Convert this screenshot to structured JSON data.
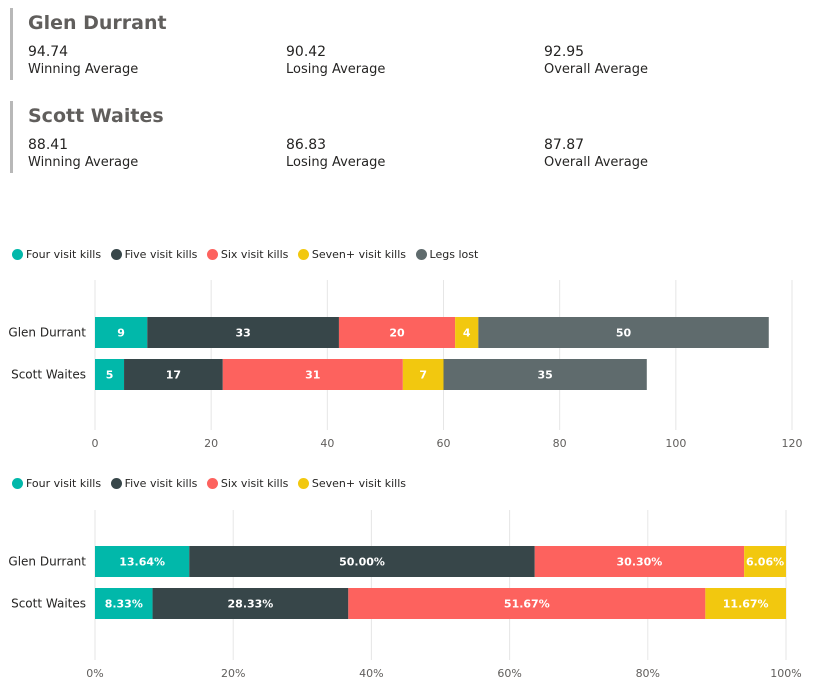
{
  "players": [
    {
      "name": "Glen Durrant",
      "kpis": [
        {
          "value": "94.74",
          "label": "Winning Average"
        },
        {
          "value": "90.42",
          "label": "Losing Average"
        },
        {
          "value": "92.95",
          "label": "Overall Average"
        }
      ]
    },
    {
      "name": "Scott Waites",
      "kpis": [
        {
          "value": "88.41",
          "label": "Winning Average"
        },
        {
          "value": "86.83",
          "label": "Losing Average"
        },
        {
          "value": "87.87",
          "label": "Overall Average"
        }
      ]
    }
  ],
  "colors": {
    "four": "#01b8aa",
    "five": "#374649",
    "six": "#fd625e",
    "seven": "#f2c80f",
    "lost": "#5f6b6d",
    "grid": "#e6e6e6",
    "axis_text": "#605e5c"
  },
  "chart_data": [
    {
      "type": "bar",
      "orientation": "horizontal",
      "stacked": true,
      "categories": [
        "Glen Durrant",
        "Scott Waites"
      ],
      "series": [
        {
          "name": "Four visit kills",
          "color_key": "four",
          "values": [
            9,
            5
          ],
          "labels": [
            "9",
            "5"
          ]
        },
        {
          "name": "Five visit kills",
          "color_key": "five",
          "values": [
            33,
            17
          ],
          "labels": [
            "33",
            "17"
          ]
        },
        {
          "name": "Six visit kills",
          "color_key": "six",
          "values": [
            20,
            31
          ],
          "labels": [
            "20",
            "31"
          ]
        },
        {
          "name": "Seven+ visit kills",
          "color_key": "seven",
          "values": [
            4,
            7
          ],
          "labels": [
            "4",
            "7"
          ]
        },
        {
          "name": "Legs lost",
          "color_key": "lost",
          "values": [
            50,
            35
          ],
          "labels": [
            "50",
            "35"
          ]
        }
      ],
      "xlim": [
        0,
        120
      ],
      "ticks": [
        0,
        20,
        40,
        60,
        80,
        100,
        120
      ],
      "tick_labels": [
        "0",
        "20",
        "40",
        "60",
        "80",
        "100",
        "120"
      ],
      "grid": true,
      "legend_position": "top-left"
    },
    {
      "type": "bar",
      "orientation": "horizontal",
      "stacked": true,
      "percent": true,
      "categories": [
        "Glen Durrant",
        "Scott Waites"
      ],
      "series": [
        {
          "name": "Four visit kills",
          "color_key": "four",
          "values": [
            13.64,
            8.33
          ],
          "labels": [
            "13.64%",
            "8.33%"
          ]
        },
        {
          "name": "Five visit kills",
          "color_key": "five",
          "values": [
            50.0,
            28.33
          ],
          "labels": [
            "50.00%",
            "28.33%"
          ]
        },
        {
          "name": "Six visit kills",
          "color_key": "six",
          "values": [
            30.3,
            51.67
          ],
          "labels": [
            "30.30%",
            "51.67%"
          ]
        },
        {
          "name": "Seven+ visit kills",
          "color_key": "seven",
          "values": [
            6.06,
            11.67
          ],
          "labels": [
            "6.06%",
            "11.67%"
          ]
        }
      ],
      "xlim": [
        0,
        100
      ],
      "ticks": [
        0,
        20,
        40,
        60,
        80,
        100
      ],
      "tick_labels": [
        "0%",
        "20%",
        "40%",
        "60%",
        "80%",
        "100%"
      ],
      "grid": true,
      "legend_position": "top-left"
    }
  ]
}
